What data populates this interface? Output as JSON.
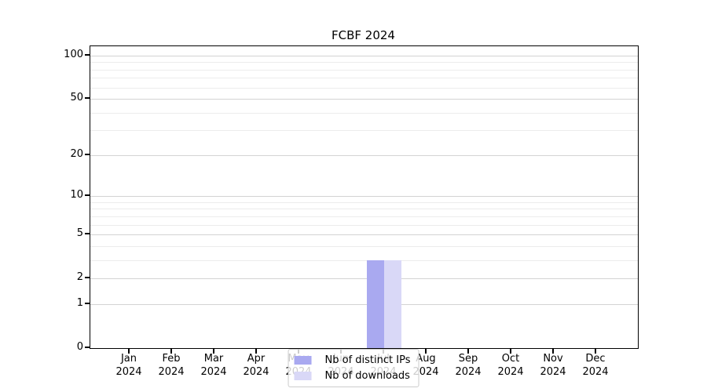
{
  "title": "FCBF 2024",
  "chart_data": {
    "type": "bar",
    "title": "FCBF 2024",
    "categories": [
      "Jan",
      "Feb",
      "Mar",
      "Apr",
      "May",
      "Jun",
      "Jul",
      "Aug",
      "Sep",
      "Oct",
      "Nov",
      "Dec"
    ],
    "year_label": "2024",
    "series": [
      {
        "name": "Nb of distinct IPs",
        "color": "#a9a9f0",
        "values": [
          0,
          0,
          0,
          0,
          0,
          0,
          3,
          0,
          0,
          0,
          0,
          0
        ]
      },
      {
        "name": "Nb of downloads",
        "color": "#d9d8f7",
        "values": [
          0,
          0,
          0,
          0,
          0,
          0,
          3,
          0,
          0,
          0,
          0,
          0
        ]
      }
    ],
    "y_scale": "log10(1+y)",
    "y_ticks": [
      0,
      1,
      2,
      5,
      10,
      20,
      50,
      100
    ],
    "y_minor_ticks": [
      3,
      4,
      6,
      7,
      8,
      9,
      30,
      40,
      60,
      70,
      80,
      90
    ],
    "ylim": [
      0,
      116
    ],
    "grid": true,
    "legend_position": "bottom-center",
    "colors": {
      "grid_major": "#d3d3d3",
      "grid_minor": "#ececec",
      "legend_border": "#cccccc",
      "axis": "#000000"
    }
  }
}
